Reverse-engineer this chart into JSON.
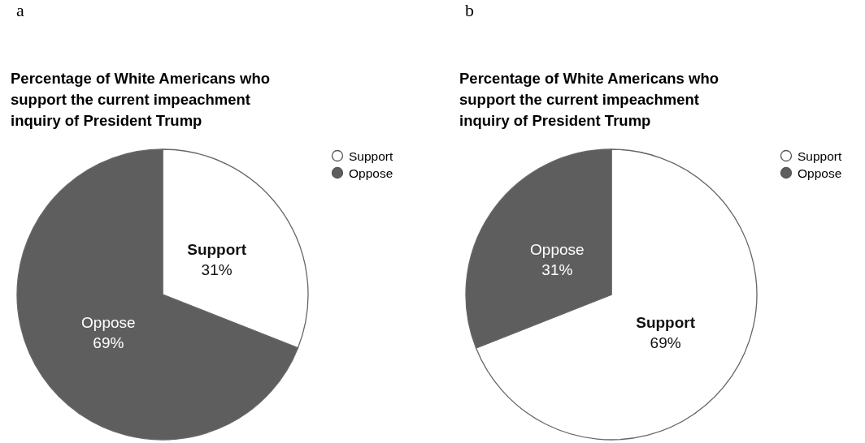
{
  "chart_data": [
    {
      "type": "pie",
      "title": "Percentage of White Americans who support the current impeachment inquiry of President Trump",
      "annotations": [
        "a"
      ],
      "categories": [
        "Support",
        "Oppose"
      ],
      "values": [
        31,
        69
      ],
      "colors": [
        "#ffffff",
        "#5e5e5e"
      ],
      "value_labels": [
        "31%",
        "69%"
      ],
      "legend": "top right"
    },
    {
      "type": "pie",
      "title": "Percentage of White Americans who support the current impeachment inquiry of President Trump",
      "annotations": [
        "b"
      ],
      "categories": [
        "Support",
        "Oppose"
      ],
      "values": [
        69,
        31
      ],
      "colors": [
        "#ffffff",
        "#5e5e5e"
      ],
      "value_labels": [
        "69%",
        "31%"
      ],
      "legend": "top right"
    }
  ]
}
